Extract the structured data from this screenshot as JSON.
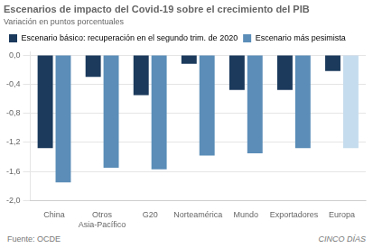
{
  "chart_data": {
    "type": "bar",
    "title": "Escenarios de impacto del Covid-19 sobre el crecimiento del PIB",
    "subtitle": "Variación en puntos porcentuales",
    "categories": [
      "China",
      "Otros\nAsia-Pacífico",
      "G20",
      "Norteamérica",
      "Mundo",
      "Exportadores",
      "Europa"
    ],
    "series": [
      {
        "name": "Escenario básico: recuperación en el segundo trim. de 2020",
        "color": "#1b3a5c",
        "values": [
          -1.28,
          -0.3,
          -0.55,
          -0.12,
          -0.48,
          -0.48,
          -0.22
        ]
      },
      {
        "name": "Escenario más pesimista",
        "color": "#5b8db8",
        "colors": [
          "#5b8db8",
          "#5b8db8",
          "#5b8db8",
          "#5b8db8",
          "#5b8db8",
          "#5b8db8",
          "#c5dcee"
        ],
        "values": [
          -1.75,
          -1.55,
          -1.57,
          -1.38,
          -1.35,
          -1.28,
          -1.28
        ]
      }
    ],
    "ylim": [
      -2.0,
      0.05
    ],
    "yticks": [
      {
        "value": 0.0,
        "label": "0,0"
      },
      {
        "value": -0.4,
        "label": "-0,4"
      },
      {
        "value": -0.8,
        "label": "-0,8"
      },
      {
        "value": -1.2,
        "label": "-1,2"
      },
      {
        "value": -1.6,
        "label": "-1,6"
      },
      {
        "value": -2.0,
        "label": "-2,0"
      }
    ],
    "grid": true,
    "legend": "top",
    "annotations": [
      "Fuente: OCDE",
      "CINCO DÍAS"
    ]
  }
}
